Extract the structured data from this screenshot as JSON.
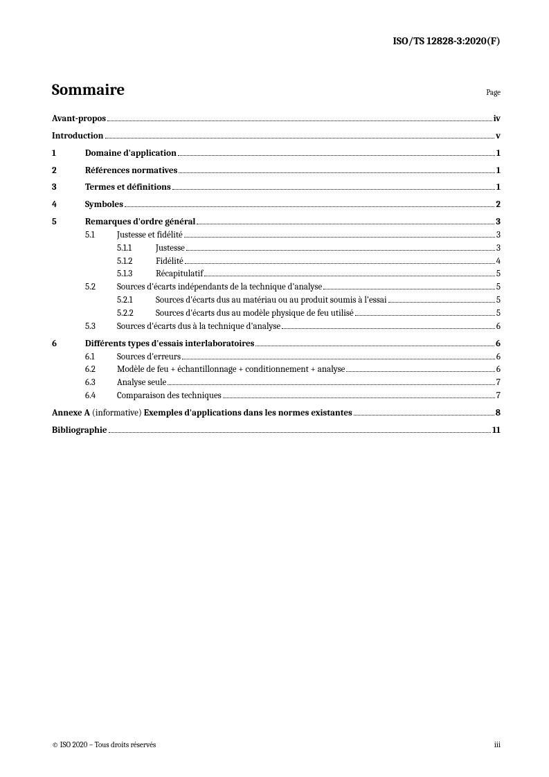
{
  "header_ref": "ISO/TS 12828-3:2020(F)",
  "toc_title": "Sommaire",
  "page_label": "Page",
  "entries": [
    {
      "level": 0,
      "bold": true,
      "num": "",
      "label": "Avant-propos",
      "page": "iv",
      "gap": false
    },
    {
      "level": 0,
      "bold": true,
      "num": "",
      "label": "Introduction",
      "page": "v",
      "gap": true
    },
    {
      "level": 0,
      "bold": true,
      "num": "1",
      "label": "Domaine d'application",
      "page": "1",
      "gap": true
    },
    {
      "level": 0,
      "bold": true,
      "num": "2",
      "label": "Références normatives",
      "page": "1",
      "gap": true
    },
    {
      "level": 0,
      "bold": true,
      "num": "3",
      "label": "Termes et définitions",
      "page": "1",
      "gap": true
    },
    {
      "level": 0,
      "bold": true,
      "num": "4",
      "label": "Symboles",
      "page": "2",
      "gap": true
    },
    {
      "level": 0,
      "bold": true,
      "num": "5",
      "label": "Remarques d'ordre général",
      "page": "3",
      "gap": true
    },
    {
      "level": 1,
      "bold": false,
      "num": "5.1",
      "label": "Justesse et fidélité",
      "page": "3",
      "gap": false
    },
    {
      "level": 2,
      "bold": false,
      "num": "5.1.1",
      "label": "Justesse",
      "page": "3",
      "gap": false
    },
    {
      "level": 2,
      "bold": false,
      "num": "5.1.2",
      "label": "Fidélité",
      "page": "4",
      "gap": false
    },
    {
      "level": 2,
      "bold": false,
      "num": "5.1.3",
      "label": "Récapitulatif",
      "page": "5",
      "gap": false
    },
    {
      "level": 1,
      "bold": false,
      "num": "5.2",
      "label": "Sources d'écarts indépendants de la technique d'analyse",
      "page": "5",
      "gap": false
    },
    {
      "level": 2,
      "bold": false,
      "num": "5.2.1",
      "label": "Sources d'écarts dus au matériau ou au produit soumis à l'essai",
      "page": "5",
      "gap": false
    },
    {
      "level": 2,
      "bold": false,
      "num": "5.2.2",
      "label": "Sources d'écarts dus au modèle physique de feu utilisé",
      "page": "5",
      "gap": false
    },
    {
      "level": 1,
      "bold": false,
      "num": "5.3",
      "label": "Sources d'écarts dus à la technique d'analyse",
      "page": "6",
      "gap": false
    },
    {
      "level": 0,
      "bold": true,
      "num": "6",
      "label": "Différents types d'essais interlaboratoires",
      "page": "6",
      "gap": true
    },
    {
      "level": 1,
      "bold": false,
      "num": "6.1",
      "label": "Sources d'erreurs",
      "page": "6",
      "gap": false
    },
    {
      "level": 1,
      "bold": false,
      "num": "6.2",
      "label": "Modèle de feu + échantillonnage + conditionnement + analyse",
      "page": "6",
      "gap": false
    },
    {
      "level": 1,
      "bold": false,
      "num": "6.3",
      "label": "Analyse seule",
      "page": "7",
      "gap": false
    },
    {
      "level": 1,
      "bold": false,
      "num": "6.4",
      "label": "Comparaison des techniques",
      "page": "7",
      "gap": false
    }
  ],
  "annex": {
    "prefix": "Annexe A",
    "note": " (informative) ",
    "title": "Exemples d'applications dans les normes existantes",
    "page": "8"
  },
  "biblio": {
    "label": "Bibliographie",
    "page": "11"
  },
  "footer_left": "© ISO 2020 – Tous droits réservés",
  "footer_right": "iii"
}
